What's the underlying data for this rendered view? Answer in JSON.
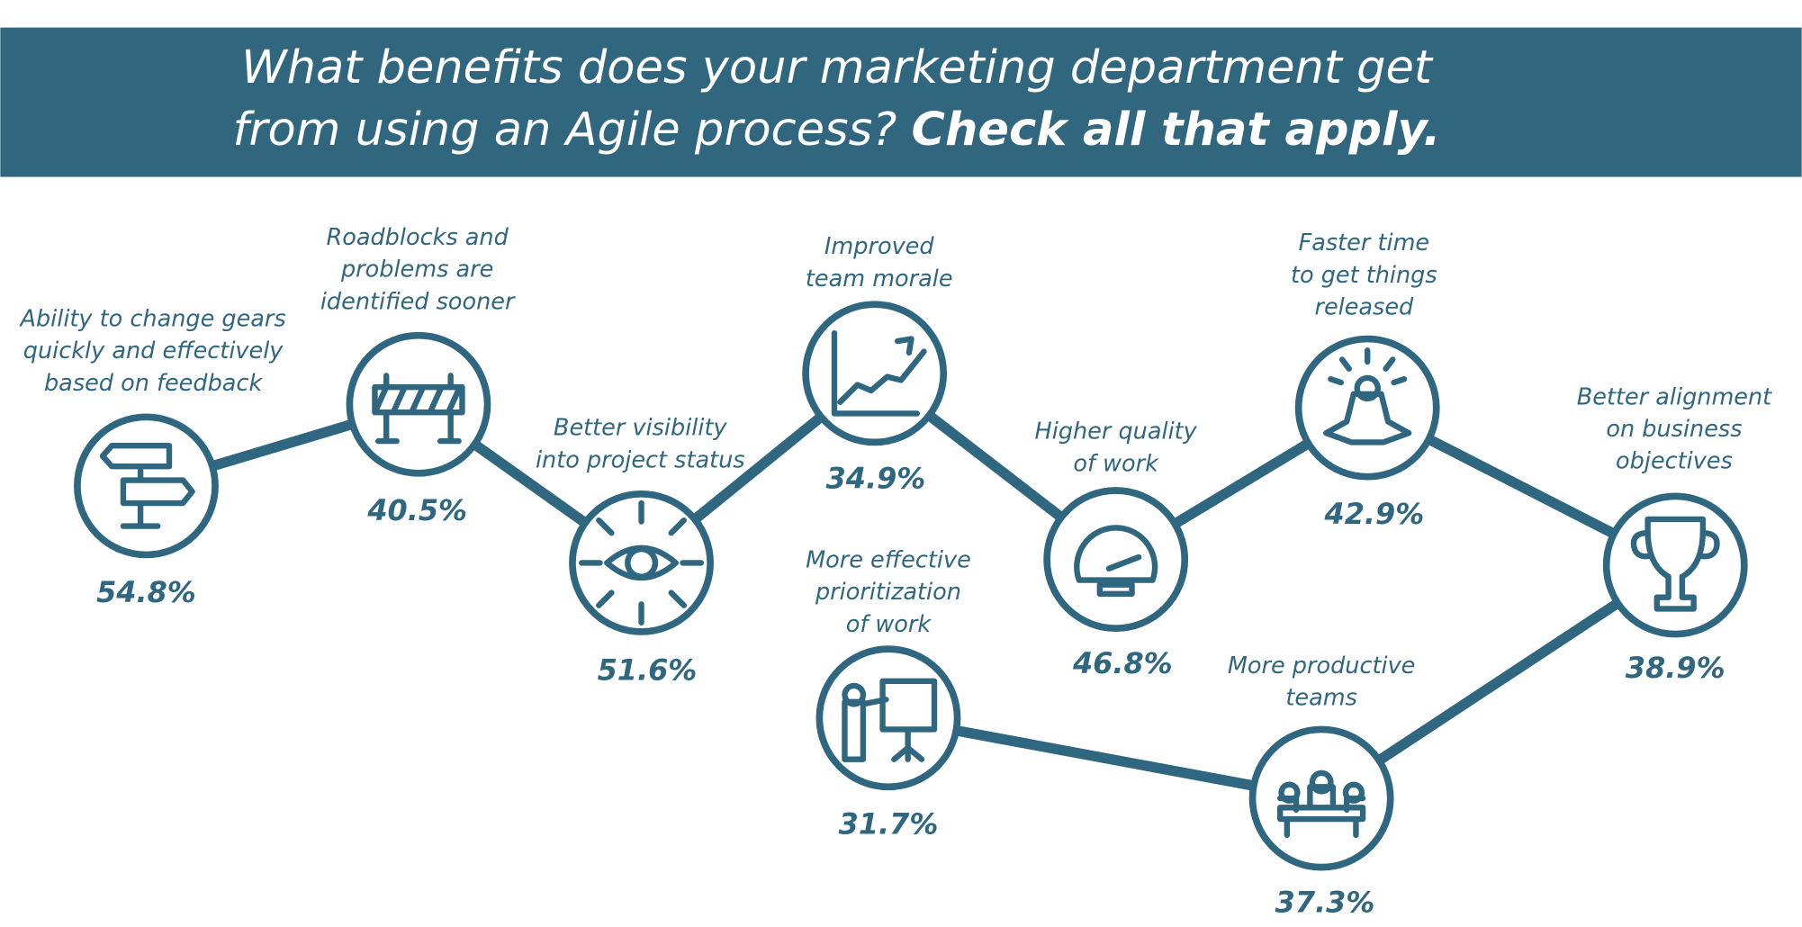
{
  "title": {
    "line1": "What benefits does your marketing department get",
    "line2": "from using an Agile process?",
    "emphasis": "Check all that apply."
  },
  "nodes": [
    {
      "label": [
        "Ability to change gears",
        "quickly and effectively",
        "based on feedback"
      ],
      "value": "54.8%"
    },
    {
      "label": [
        "Roadblocks and",
        "problems are",
        "identified sooner"
      ],
      "value": "40.5%"
    },
    {
      "label": [
        "Better visibility",
        "into project status"
      ],
      "value": "51.6%"
    },
    {
      "label": [
        "Improved",
        "team morale"
      ],
      "value": "34.9%"
    },
    {
      "label": [
        "Higher quality",
        "of work"
      ],
      "value": "46.8%"
    },
    {
      "label": [
        "Faster time",
        "to get things",
        "released"
      ],
      "value": "42.9%"
    },
    {
      "label": [
        "Better alignment",
        "on business",
        "objectives"
      ],
      "value": "38.9%"
    },
    {
      "label": [
        "More effective",
        "prioritization",
        "of work"
      ],
      "value": "31.7%"
    },
    {
      "label": [
        "More productive",
        "teams"
      ],
      "value": "37.3%"
    }
  ]
}
